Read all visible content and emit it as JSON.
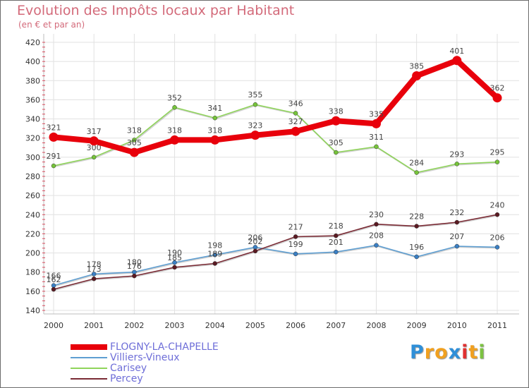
{
  "chart_data": {
    "type": "line",
    "title": "Evolution des Impôts locaux par Habitant",
    "subtitle": "(en € et par an)",
    "x": [
      "2000",
      "2001",
      "2002",
      "2003",
      "2004",
      "2005",
      "2006",
      "2007",
      "2008",
      "2009",
      "2010",
      "2011"
    ],
    "ylim": [
      140,
      420
    ],
    "yticks": [
      140,
      160,
      180,
      200,
      220,
      240,
      260,
      280,
      300,
      320,
      340,
      360,
      380,
      400,
      420
    ],
    "grid": true,
    "legend_position": "bottom-left",
    "series": [
      {
        "name": "FLOGNY-LA-CHAPELLE",
        "color": "#e8000b",
        "thick": true,
        "values": [
          321,
          317,
          305,
          318,
          318,
          323,
          327,
          338,
          335,
          385,
          401,
          362
        ]
      },
      {
        "name": "Villiers-Vineux",
        "color": "#5e9ed1",
        "marker": "#3a7fc4",
        "thick": false,
        "values": [
          166,
          178,
          180,
          190,
          198,
          206,
          199,
          201,
          208,
          196,
          207,
          206
        ]
      },
      {
        "name": "Carisey",
        "color": "#8fd45a",
        "marker": "#76c43a",
        "thick": false,
        "values": [
          291,
          300,
          318,
          352,
          341,
          355,
          346,
          305,
          311,
          284,
          293,
          295
        ]
      },
      {
        "name": "Percey",
        "color": "#7a2a34",
        "marker": "#5a1a22",
        "thick": false,
        "values": [
          162,
          173,
          176,
          185,
          189,
          202,
          217,
          218,
          230,
          228,
          232,
          240
        ]
      }
    ]
  },
  "logo": {
    "letters": [
      "P",
      "r",
      "o",
      "x",
      "i",
      "t",
      "i"
    ],
    "colors": [
      "#2f8fd8",
      "#f0a020",
      "#f0a020",
      "#2f8fd8",
      "#e03030",
      "#f0a020",
      "#7cc242"
    ]
  }
}
